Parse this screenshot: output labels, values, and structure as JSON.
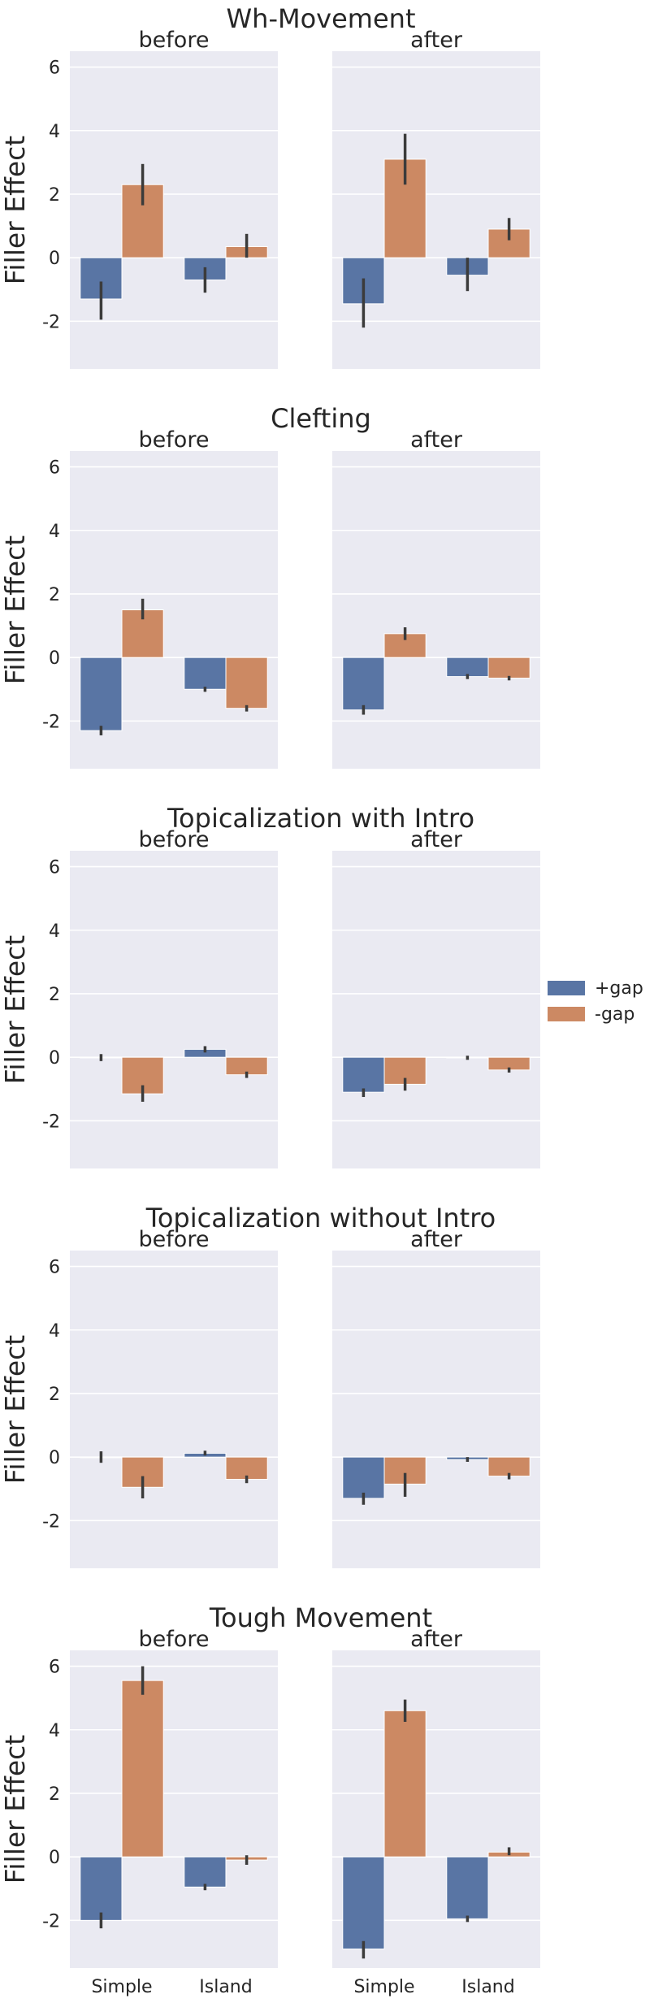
{
  "legend": {
    "placement": "right",
    "entries": [
      {
        "name": "+gap",
        "color": "#5975a4"
      },
      {
        "name": "-gap",
        "color": "#cc8963"
      }
    ]
  },
  "chart_data": [
    {
      "type": "bar",
      "title": "Wh-Movement",
      "ylabel": "Filler Effect",
      "ylim": [
        -3.5,
        6.5
      ],
      "yticks": [
        -2,
        0,
        2,
        4,
        6
      ],
      "grid": true,
      "panels": [
        {
          "title": "before",
          "categories": [
            "Simple",
            "Island"
          ],
          "series": [
            {
              "name": "+gap",
              "values": [
                -1.3,
                -0.7
              ],
              "errors": [
                [
                  -1.95,
                  -0.75
                ],
                [
                  -1.1,
                  -0.3
                ]
              ]
            },
            {
              "name": "-gap",
              "values": [
                2.3,
                0.35
              ],
              "errors": [
                [
                  1.65,
                  2.95
                ],
                [
                  0.0,
                  0.75
                ]
              ]
            }
          ]
        },
        {
          "title": "after",
          "categories": [
            "Simple",
            "Island"
          ],
          "series": [
            {
              "name": "+gap",
              "values": [
                -1.45,
                -0.55
              ],
              "errors": [
                [
                  -2.2,
                  -0.65
                ],
                [
                  -1.05,
                  0.0
                ]
              ]
            },
            {
              "name": "-gap",
              "values": [
                3.1,
                0.9
              ],
              "errors": [
                [
                  2.3,
                  3.9
                ],
                [
                  0.55,
                  1.25
                ]
              ]
            }
          ]
        }
      ]
    },
    {
      "type": "bar",
      "title": "Clefting",
      "ylabel": "Filler Effect",
      "ylim": [
        -3.5,
        6.5
      ],
      "yticks": [
        -2,
        0,
        2,
        4,
        6
      ],
      "grid": true,
      "panels": [
        {
          "title": "before",
          "categories": [
            "Simple",
            "Island"
          ],
          "series": [
            {
              "name": "+gap",
              "values": [
                -2.3,
                -1.0
              ],
              "errors": [
                [
                  -2.45,
                  -2.15
                ],
                [
                  -1.08,
                  -0.92
                ]
              ]
            },
            {
              "name": "-gap",
              "values": [
                1.5,
                -1.6
              ],
              "errors": [
                [
                  1.2,
                  1.85
                ],
                [
                  -1.7,
                  -1.5
                ]
              ]
            }
          ]
        },
        {
          "title": "after",
          "categories": [
            "Simple",
            "Island"
          ],
          "series": [
            {
              "name": "+gap",
              "values": [
                -1.65,
                -0.6
              ],
              "errors": [
                [
                  -1.8,
                  -1.5
                ],
                [
                  -0.68,
                  -0.52
                ]
              ]
            },
            {
              "name": "-gap",
              "values": [
                0.75,
                -0.65
              ],
              "errors": [
                [
                  0.55,
                  0.95
                ],
                [
                  -0.72,
                  -0.58
                ]
              ]
            }
          ]
        }
      ]
    },
    {
      "type": "bar",
      "title": "Topicalization with Intro",
      "ylabel": "Filler Effect",
      "ylim": [
        -3.5,
        6.5
      ],
      "yticks": [
        -2,
        0,
        2,
        4,
        6
      ],
      "grid": true,
      "panels": [
        {
          "title": "before",
          "categories": [
            "Simple",
            "Island"
          ],
          "series": [
            {
              "name": "+gap",
              "values": [
                -0.02,
                0.25
              ],
              "errors": [
                [
                  -0.12,
                  0.1
                ],
                [
                  0.15,
                  0.35
                ]
              ]
            },
            {
              "name": "-gap",
              "values": [
                -1.15,
                -0.55
              ],
              "errors": [
                [
                  -1.4,
                  -0.88
                ],
                [
                  -0.65,
                  -0.45
                ]
              ]
            }
          ]
        },
        {
          "title": "after",
          "categories": [
            "Simple",
            "Island"
          ],
          "series": [
            {
              "name": "+gap",
              "values": [
                -1.1,
                -0.02
              ],
              "errors": [
                [
                  -1.25,
                  -0.98
                ],
                [
                  -0.08,
                  0.05
                ]
              ]
            },
            {
              "name": "-gap",
              "values": [
                -0.85,
                -0.4
              ],
              "errors": [
                [
                  -1.05,
                  -0.65
                ],
                [
                  -0.48,
                  -0.32
                ]
              ]
            }
          ]
        }
      ]
    },
    {
      "type": "bar",
      "title": "Topicalization without Intro",
      "ylabel": "Filler Effect",
      "ylim": [
        -3.5,
        6.5
      ],
      "yticks": [
        -2,
        0,
        2,
        4,
        6
      ],
      "grid": true,
      "panels": [
        {
          "title": "before",
          "categories": [
            "Simple",
            "Island"
          ],
          "series": [
            {
              "name": "+gap",
              "values": [
                -0.02,
                0.12
              ],
              "errors": [
                [
                  -0.18,
                  0.18
                ],
                [
                  0.05,
                  0.2
                ]
              ]
            },
            {
              "name": "-gap",
              "values": [
                -0.95,
                -0.7
              ],
              "errors": [
                [
                  -1.3,
                  -0.6
                ],
                [
                  -0.82,
                  -0.58
                ]
              ]
            }
          ]
        },
        {
          "title": "after",
          "categories": [
            "Simple",
            "Island"
          ],
          "series": [
            {
              "name": "+gap",
              "values": [
                -1.3,
                -0.08
              ],
              "errors": [
                [
                  -1.5,
                  -1.12
                ],
                [
                  -0.15,
                  0.0
                ]
              ]
            },
            {
              "name": "-gap",
              "values": [
                -0.85,
                -0.6
              ],
              "errors": [
                [
                  -1.25,
                  -0.5
                ],
                [
                  -0.7,
                  -0.5
                ]
              ]
            }
          ]
        }
      ]
    },
    {
      "type": "bar",
      "title": "Tough Movement",
      "ylabel": "Filler Effect",
      "ylim": [
        -3.5,
        6.5
      ],
      "yticks": [
        -2,
        0,
        2,
        4,
        6
      ],
      "grid": true,
      "panels": [
        {
          "title": "before",
          "categories": [
            "Simple",
            "Island"
          ],
          "series": [
            {
              "name": "+gap",
              "values": [
                -2.0,
                -0.95
              ],
              "errors": [
                [
                  -2.25,
                  -1.75
                ],
                [
                  -1.05,
                  -0.85
                ]
              ]
            },
            {
              "name": "-gap",
              "values": [
                5.55,
                -0.1
              ],
              "errors": [
                [
                  5.1,
                  6.0
                ],
                [
                  -0.25,
                  0.05
                ]
              ]
            }
          ]
        },
        {
          "title": "after",
          "categories": [
            "Simple",
            "Island"
          ],
          "series": [
            {
              "name": "+gap",
              "values": [
                -2.9,
                -1.95
              ],
              "errors": [
                [
                  -3.2,
                  -2.65
                ],
                [
                  -2.05,
                  -1.85
                ]
              ]
            },
            {
              "name": "-gap",
              "values": [
                4.6,
                0.15
              ],
              "errors": [
                [
                  4.25,
                  4.95
                ],
                [
                  0.05,
                  0.3
                ]
              ]
            }
          ]
        }
      ]
    }
  ]
}
